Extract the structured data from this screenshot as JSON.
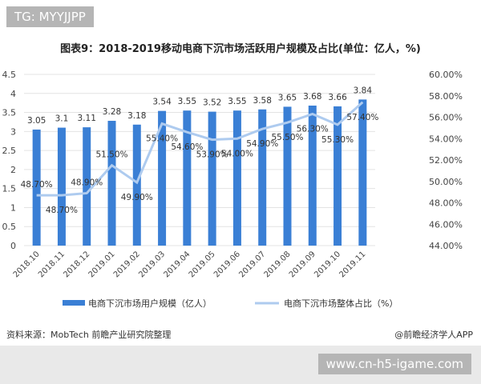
{
  "badge": "TG: MYYJJPP",
  "source": "资料来源：MobTech 前瞻产业研究院整理",
  "app": "@前瞻经济学人APP",
  "url": "www.cn-h5-igame.com",
  "chart_data": {
    "type": "bar+line",
    "title": "图表9：2018-2019移动电商下沉市场活跃用户规模及占比(单位：亿人，%)",
    "categories": [
      "2018.10",
      "2018.11",
      "2018.12",
      "2019.01",
      "2019.02",
      "2019.03",
      "2019.04",
      "2019.05",
      "2019.06",
      "2019.07",
      "2019.08",
      "2019.09",
      "2019.10",
      "2019.11"
    ],
    "series": [
      {
        "name": "电商下沉市场用户规模（亿人）",
        "type": "bar",
        "axis": "left",
        "color": "#3a7fd5",
        "values": [
          3.05,
          3.1,
          3.11,
          3.28,
          3.18,
          3.54,
          3.55,
          3.52,
          3.55,
          3.58,
          3.65,
          3.68,
          3.66,
          3.84
        ],
        "labels": [
          "3.05",
          "3.1",
          "3.11",
          "3.28",
          "3.18",
          "3.54",
          "3.55",
          "3.52",
          "3.55",
          "3.58",
          "3.65",
          "3.68",
          "3.66",
          "3.84"
        ]
      },
      {
        "name": "电商下沉市场整体占比（%）",
        "type": "line",
        "axis": "right",
        "color": "#aecbef",
        "values": [
          48.7,
          48.7,
          48.9,
          51.5,
          49.9,
          55.4,
          54.6,
          53.9,
          54.0,
          54.9,
          55.5,
          56.3,
          55.3,
          57.4
        ],
        "labels": [
          "48.70%",
          "48.70%",
          "48.90%",
          "51.50%",
          "49.90%",
          "55.40%",
          "54.60%",
          "53.90%",
          "54.00%",
          "54.90%",
          "55.50%",
          "56.30%",
          "55.30%",
          "57.40%"
        ]
      }
    ],
    "left_axis": {
      "range": [
        0,
        4.5
      ],
      "ticks": [
        "0",
        "0.5",
        "1",
        "1.5",
        "2",
        "2.5",
        "3",
        "3.5",
        "4",
        "4.5"
      ]
    },
    "right_axis": {
      "range": [
        44,
        60
      ],
      "ticks": [
        "44.00%",
        "46.00%",
        "48.00%",
        "50.00%",
        "52.00%",
        "54.00%",
        "56.00%",
        "58.00%",
        "60.00%"
      ]
    },
    "grid": true,
    "legend": "bottom"
  }
}
